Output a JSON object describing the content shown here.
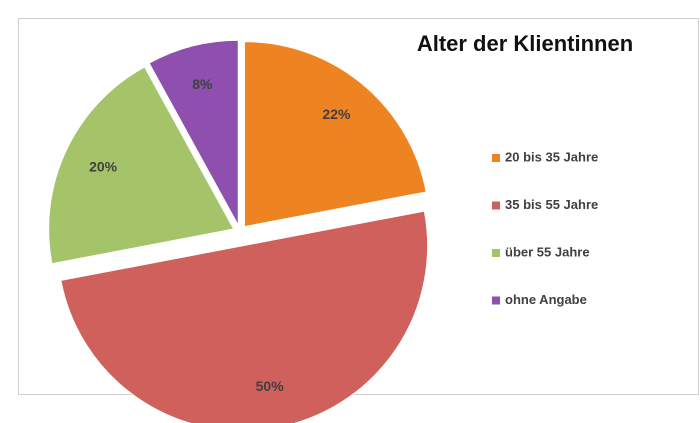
{
  "chart_data": {
    "type": "pie",
    "title": "Alter der Klientinnen",
    "categories": [
      "20 bis 35 Jahre",
      "35 bis 55 Jahre",
      "über 55 Jahre",
      "ohne Angabe"
    ],
    "values": [
      22,
      50,
      20,
      8
    ],
    "value_labels": [
      "22%",
      "50%",
      "20%",
      "8%"
    ],
    "colors": [
      "#ee8322",
      "#d0605b",
      "#a5c46a",
      "#8e4fae"
    ],
    "legend": "right"
  }
}
